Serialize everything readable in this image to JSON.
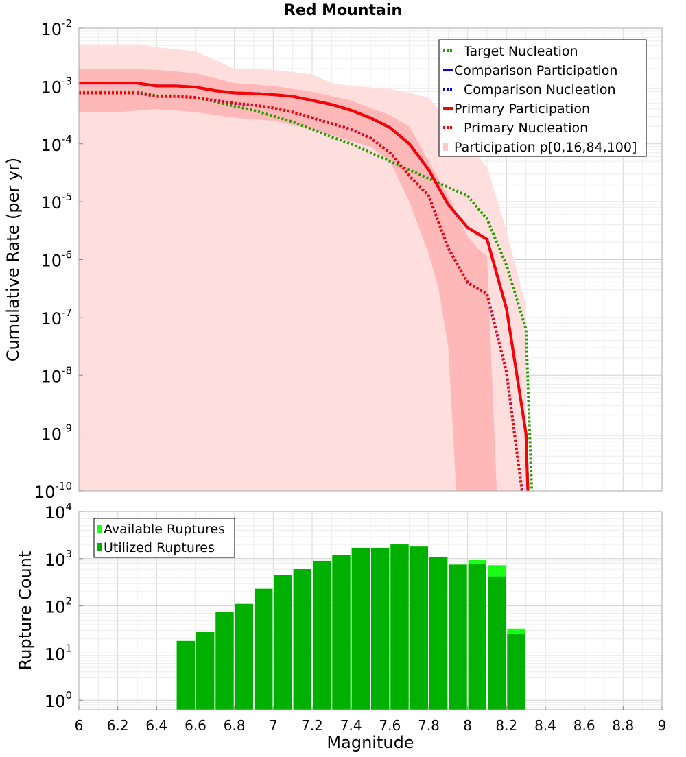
{
  "title": "Red Mountain",
  "chart_data": [
    {
      "type": "line",
      "title": "Red Mountain",
      "ylabel": "Cumulative Rate (per yr)",
      "xlabel": "",
      "xlim": [
        6,
        9
      ],
      "ylim_log10": [
        -10,
        -2
      ],
      "y_scale": "log",
      "grid": true,
      "legend_position": "top-right",
      "legend": [
        {
          "label": "Target Nucleation",
          "color": "#22a000",
          "style": "dotted"
        },
        {
          "label": "Comparison Participation",
          "color": "#0000ff",
          "style": "solid"
        },
        {
          "label": "Comparison Nucleation",
          "color": "#0000ff",
          "style": "dotted"
        },
        {
          "label": "Primary Participation",
          "color": "#ff0000",
          "style": "solid"
        },
        {
          "label": "Primary Nucleation",
          "color": "#ff0000",
          "style": "dotted"
        },
        {
          "label": "Participation p[0,16,84,100]",
          "color": "#ffc8c8",
          "style": "fill"
        }
      ],
      "x": [
        6.0,
        6.1,
        6.2,
        6.3,
        6.4,
        6.5,
        6.6,
        6.7,
        6.8,
        6.9,
        7.0,
        7.1,
        7.2,
        7.3,
        7.4,
        7.5,
        7.6,
        7.7,
        7.8,
        7.9,
        8.0,
        8.1,
        8.2,
        8.3
      ],
      "series": [
        {
          "name": "Target Nucleation",
          "color": "#22a000",
          "style": "dotted",
          "x": [
            6.0,
            6.1,
            6.2,
            6.3,
            6.4,
            6.5,
            6.6,
            6.7,
            6.8,
            6.9,
            7.0,
            7.1,
            7.2,
            7.3,
            7.4,
            7.5,
            7.6,
            7.7,
            7.8,
            7.9,
            8.0,
            8.1,
            8.2,
            8.3,
            8.33
          ],
          "log10_values": [
            -3.1,
            -3.1,
            -3.1,
            -3.1,
            -3.17,
            -3.17,
            -3.2,
            -3.27,
            -3.35,
            -3.42,
            -3.52,
            -3.62,
            -3.75,
            -3.88,
            -4.0,
            -4.15,
            -4.3,
            -4.45,
            -4.6,
            -4.75,
            -4.9,
            -5.3,
            -6.1,
            -7.2,
            -10.0
          ]
        },
        {
          "name": "Comparison Participation",
          "color": "#0000ff",
          "style": "solid",
          "x": [
            6.0,
            6.1,
            6.2,
            6.3,
            6.4,
            6.5,
            6.6,
            6.7,
            6.8,
            6.9,
            7.0,
            7.1,
            7.2,
            7.3,
            7.4,
            7.5,
            7.6,
            7.7,
            7.8,
            7.9,
            8.0,
            8.1,
            8.2,
            8.3,
            8.31
          ],
          "log10_values": [
            -2.95,
            -2.95,
            -2.95,
            -2.95,
            -3.0,
            -3.0,
            -3.02,
            -3.08,
            -3.12,
            -3.13,
            -3.15,
            -3.18,
            -3.25,
            -3.32,
            -3.42,
            -3.55,
            -3.72,
            -4.0,
            -4.45,
            -5.05,
            -5.45,
            -5.65,
            -6.85,
            -9.0,
            -10.0
          ]
        },
        {
          "name": "Comparison Nucleation",
          "color": "#0000ff",
          "style": "dotted",
          "x": [
            6.0,
            6.1,
            6.2,
            6.3,
            6.4,
            6.5,
            6.6,
            6.7,
            6.8,
            6.9,
            7.0,
            7.1,
            7.2,
            7.3,
            7.4,
            7.5,
            7.6,
            7.7,
            7.8,
            7.9,
            8.0,
            8.1,
            8.2,
            8.26,
            8.28
          ],
          "log10_values": [
            -3.12,
            -3.12,
            -3.12,
            -3.12,
            -3.18,
            -3.18,
            -3.2,
            -3.25,
            -3.3,
            -3.33,
            -3.38,
            -3.45,
            -3.55,
            -3.65,
            -3.75,
            -3.9,
            -4.15,
            -4.55,
            -4.9,
            -5.8,
            -6.4,
            -6.6,
            -7.95,
            -9.5,
            -10.0
          ]
        },
        {
          "name": "Primary Participation",
          "color": "#ff0000",
          "style": "solid",
          "x": [
            6.0,
            6.1,
            6.2,
            6.3,
            6.4,
            6.5,
            6.6,
            6.7,
            6.8,
            6.9,
            7.0,
            7.1,
            7.2,
            7.3,
            7.4,
            7.5,
            7.6,
            7.7,
            7.8,
            7.9,
            8.0,
            8.1,
            8.2,
            8.3,
            8.31
          ],
          "log10_values": [
            -2.95,
            -2.95,
            -2.95,
            -2.95,
            -3.0,
            -3.0,
            -3.02,
            -3.08,
            -3.12,
            -3.13,
            -3.15,
            -3.18,
            -3.25,
            -3.32,
            -3.42,
            -3.55,
            -3.72,
            -4.0,
            -4.45,
            -5.05,
            -5.45,
            -5.65,
            -6.85,
            -9.0,
            -10.0
          ]
        },
        {
          "name": "Primary Nucleation",
          "color": "#ff0000",
          "style": "dotted",
          "x": [
            6.0,
            6.1,
            6.2,
            6.3,
            6.4,
            6.5,
            6.6,
            6.7,
            6.8,
            6.9,
            7.0,
            7.1,
            7.2,
            7.3,
            7.4,
            7.5,
            7.6,
            7.7,
            7.8,
            7.9,
            8.0,
            8.1,
            8.2,
            8.26,
            8.28
          ],
          "log10_values": [
            -3.12,
            -3.12,
            -3.12,
            -3.12,
            -3.18,
            -3.18,
            -3.2,
            -3.25,
            -3.3,
            -3.33,
            -3.38,
            -3.45,
            -3.55,
            -3.65,
            -3.75,
            -3.9,
            -4.15,
            -4.55,
            -4.9,
            -5.8,
            -6.4,
            -6.6,
            -7.95,
            -9.5,
            -10.0
          ]
        }
      ],
      "bands": [
        {
          "name": "Participation p[0,100]",
          "color": "#ffdede",
          "x": [
            6.0,
            6.3,
            6.4,
            6.6,
            6.8,
            7.0,
            7.2,
            7.3,
            7.4,
            7.6,
            7.7,
            7.8,
            7.9,
            8.0,
            8.1,
            8.2,
            8.3
          ],
          "upper_log10": [
            -2.28,
            -2.28,
            -2.33,
            -2.4,
            -2.7,
            -2.72,
            -2.8,
            -2.95,
            -3.0,
            -3.05,
            -3.12,
            -3.2,
            -3.6,
            -4.0,
            -4.4,
            -5.5,
            -6.8
          ],
          "lower_log10": [
            -10,
            -10,
            -10,
            -10,
            -10,
            -10,
            -10,
            -10,
            -10,
            -10,
            -10,
            -10,
            -10,
            -10,
            -10,
            -10,
            -10
          ]
        },
        {
          "name": "Participation p[16,84]",
          "color": "#ffb8b8",
          "x": [
            6.0,
            6.2,
            6.4,
            6.6,
            6.8,
            7.0,
            7.2,
            7.4,
            7.5,
            7.6,
            7.7,
            7.8,
            7.85,
            7.9,
            7.93,
            7.94,
            8.0,
            8.05,
            8.1,
            8.15
          ],
          "upper_log10": [
            -2.7,
            -2.7,
            -2.72,
            -2.78,
            -2.95,
            -3.0,
            -3.1,
            -3.25,
            -3.38,
            -3.5,
            -3.7,
            -4.3,
            -4.6,
            -4.9,
            -5.1,
            -5.2,
            -5.6,
            -5.8,
            -5.95,
            -10
          ],
          "lower_log10": [
            -3.45,
            -3.45,
            -3.4,
            -3.45,
            -3.55,
            -3.6,
            -3.75,
            -3.95,
            -4.05,
            -4.3,
            -5.0,
            -5.9,
            -6.5,
            -7.5,
            -9.3,
            -10,
            -10,
            -10,
            -10,
            -10
          ]
        }
      ]
    },
    {
      "type": "bar",
      "ylabel": "Rupture Count",
      "xlabel": "Magnitude",
      "xlim": [
        6,
        9
      ],
      "ylim_log10": [
        -0.2,
        4
      ],
      "y_scale": "log",
      "grid": true,
      "legend_position": "top-left",
      "legend": [
        {
          "label": "Available Ruptures",
          "color": "#1aff1a"
        },
        {
          "label": "Utilized Ruptures",
          "color": "#00b000"
        }
      ],
      "bin_width": 0.1,
      "x_start": [
        6.5,
        6.6,
        6.7,
        6.8,
        6.9,
        7.0,
        7.1,
        7.2,
        7.3,
        7.4,
        7.5,
        7.6,
        7.7,
        7.8,
        7.9,
        8.0,
        8.1,
        8.2
      ],
      "series": [
        {
          "name": "Available Ruptures",
          "color": "#1aff1a",
          "values": [
            18,
            28,
            75,
            110,
            230,
            460,
            600,
            900,
            1200,
            1700,
            1700,
            2000,
            1800,
            1100,
            750,
            950,
            730,
            33
          ]
        },
        {
          "name": "Utilized Ruptures",
          "color": "#00b000",
          "values": [
            18,
            28,
            75,
            110,
            230,
            460,
            600,
            900,
            1200,
            1700,
            1700,
            2000,
            1800,
            1100,
            750,
            780,
            420,
            25
          ]
        }
      ]
    }
  ],
  "axes": {
    "x_ticks": [
      "6",
      "6.2",
      "6.4",
      "6.6",
      "6.8",
      "7",
      "7.2",
      "7.4",
      "7.6",
      "7.8",
      "8",
      "8.2",
      "8.4",
      "8.6",
      "8.8",
      "9"
    ],
    "top_y_ticks": [
      {
        "base": "10",
        "exp": "-2"
      },
      {
        "base": "10",
        "exp": "-3"
      },
      {
        "base": "10",
        "exp": "-4"
      },
      {
        "base": "10",
        "exp": "-5"
      },
      {
        "base": "10",
        "exp": "-6"
      },
      {
        "base": "10",
        "exp": "-7"
      },
      {
        "base": "10",
        "exp": "-8"
      },
      {
        "base": "10",
        "exp": "-9"
      },
      {
        "base": "10",
        "exp": "-10"
      }
    ],
    "bottom_y_ticks": [
      {
        "base": "10",
        "exp": "4"
      },
      {
        "base": "10",
        "exp": "3"
      },
      {
        "base": "10",
        "exp": "2"
      },
      {
        "base": "10",
        "exp": "1"
      },
      {
        "base": "10",
        "exp": "0"
      }
    ]
  }
}
